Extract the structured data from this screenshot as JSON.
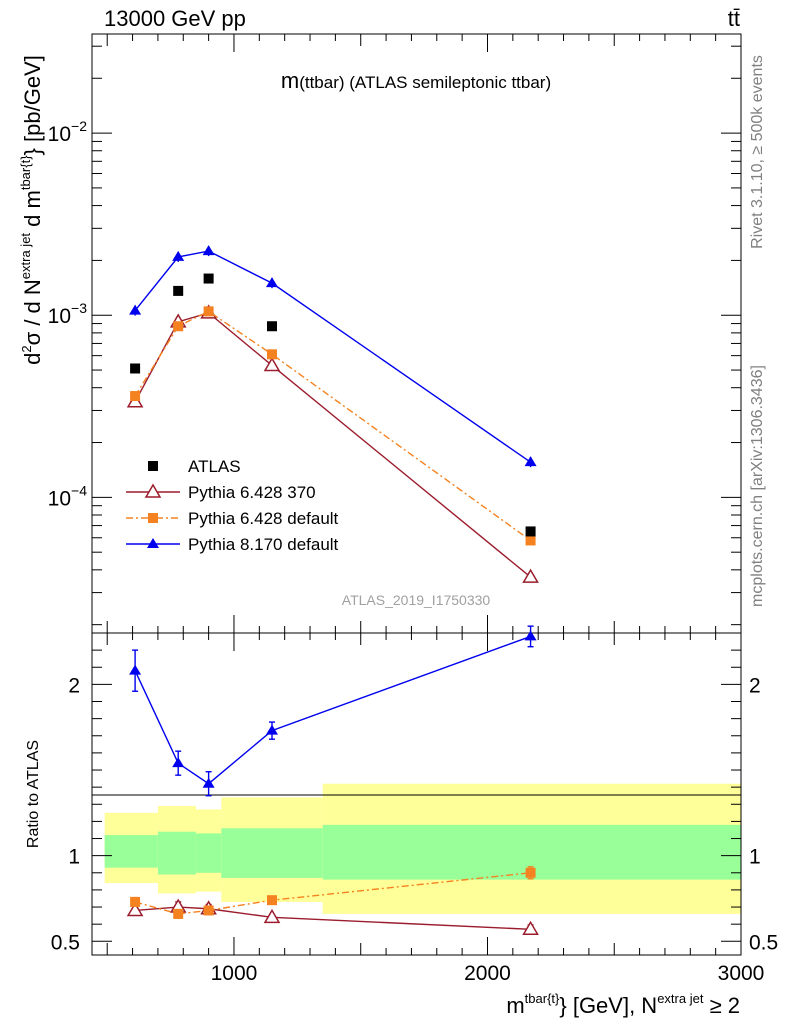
{
  "header": {
    "left": "13000 GeV pp",
    "right": "tt̄"
  },
  "side_labels": {
    "rivet": "Rivet 3.1.10, ≥ 500k events",
    "mcplots": "mcplots.cern.ch [arXiv:1306.3436]"
  },
  "chart_data": [
    {
      "id": "main",
      "type": "line",
      "yscale": "log",
      "title": "m(ttbar) (ATLAS semileptonic ttbar)",
      "title_main": "m",
      "title_paren": "(ttbar)",
      "title_rest": " (ATLAS semileptonic ttbar)",
      "watermark": "ATLAS_2019_I1750330",
      "ylabel": "d²σ / d N^{extra jet} d m^{tbar{t}} [pb/GeV]",
      "ylabel_parts": {
        "a": "d",
        "b": "2",
        "c": "σ / d N",
        "d": "extra jet",
        "e": " d m",
        "f": "tbar{t}",
        "g": "} [pb/GeV]"
      },
      "xlim": [
        440,
        3000
      ],
      "ylim": [
        1.8e-05,
        0.035
      ],
      "ytick_labels": [
        {
          "value": 0.01,
          "base": "10",
          "exp": "−2"
        },
        {
          "value": 0.001,
          "base": "10",
          "exp": "−3"
        },
        {
          "value": 0.0001,
          "base": "10",
          "exp": "−4"
        }
      ],
      "legend_position": "bottom-left",
      "series": [
        {
          "name": "ATLAS",
          "color": "#000000",
          "marker": "square",
          "line": "none",
          "x": [
            610,
            780,
            900,
            1150,
            2170
          ],
          "y": [
            0.00051,
            0.00136,
            0.00159,
            0.00087,
            6.5e-05
          ],
          "err": [
            0,
            0,
            0,
            0,
            0
          ]
        },
        {
          "name": "Pythia 6.428 370",
          "color": "#9b1c2c",
          "marker": "open-triangle",
          "line": "solid",
          "x": [
            610,
            780,
            900,
            1150,
            2170
          ],
          "y": [
            0.000335,
            0.00092,
            0.00103,
            0.00053,
            3.65e-05
          ],
          "err": [
            0,
            0,
            0,
            0,
            0
          ]
        },
        {
          "name": "Pythia 6.428 default",
          "color": "#f58220",
          "marker": "square",
          "line": "dashdot",
          "x": [
            610,
            780,
            900,
            1150,
            2170
          ],
          "y": [
            0.00036,
            0.00087,
            0.00105,
            0.00061,
            5.8e-05
          ],
          "err": [
            0,
            0,
            0,
            0,
            0
          ]
        },
        {
          "name": "Pythia 8.170 default",
          "color": "#0000ee",
          "marker": "filled-triangle",
          "line": "solid",
          "x": [
            610,
            780,
            900,
            1150,
            2170
          ],
          "y": [
            0.00106,
            0.00209,
            0.00225,
            0.0015,
            0.000156
          ],
          "err": [
            0,
            0,
            0,
            0,
            0
          ]
        }
      ]
    },
    {
      "id": "ratio",
      "type": "line",
      "yscale": "linear",
      "ylabel": "Ratio to ATLAS",
      "xlabel": "m^{tbar{t}} [GeV], N^{extra jet} ≥ 2",
      "xlabel_parts": {
        "a": "m",
        "b": "tbar{t}",
        "c": "} [GeV], N",
        "d": "extra jet",
        "e": " ≥ 2"
      },
      "xlim": [
        440,
        3000
      ],
      "ylim": [
        0.42,
        2.3
      ],
      "xticks": [
        1000,
        2000,
        3000
      ],
      "xtick_labels": [
        "1000",
        "2000",
        "3000"
      ],
      "yticks": [
        0.5,
        1,
        2
      ],
      "ytick_labels": [
        "0.5",
        "1",
        "2"
      ],
      "bands": [
        {
          "x0": 490,
          "x1": 700,
          "green_lo": 0.93,
          "green_hi": 1.12,
          "yellow_lo": 0.84,
          "yellow_hi": 1.25
        },
        {
          "x0": 700,
          "x1": 850,
          "green_lo": 0.89,
          "green_hi": 1.14,
          "yellow_lo": 0.78,
          "yellow_hi": 1.29
        },
        {
          "x0": 850,
          "x1": 950,
          "green_lo": 0.9,
          "green_hi": 1.13,
          "yellow_lo": 0.79,
          "yellow_hi": 1.27
        },
        {
          "x0": 950,
          "x1": 1350,
          "green_lo": 0.87,
          "green_hi": 1.16,
          "yellow_lo": 0.73,
          "yellow_hi": 1.34
        },
        {
          "x0": 1350,
          "x1": 3000,
          "green_lo": 0.86,
          "green_hi": 1.18,
          "yellow_lo": 0.66,
          "yellow_hi": 1.42
        }
      ],
      "series": [
        {
          "name": "Pythia 6.428 370",
          "color": "#9b1c2c",
          "marker": "open-triangle",
          "line": "solid",
          "x": [
            610,
            780,
            900,
            1150,
            2170
          ],
          "y": [
            0.68,
            0.7,
            0.69,
            0.64,
            0.57
          ],
          "err": [
            0.025,
            0.03,
            0.025,
            0.015,
            0.025
          ]
        },
        {
          "name": "Pythia 6.428 default",
          "color": "#f58220",
          "marker": "square",
          "line": "dashdot",
          "x": [
            610,
            780,
            900,
            1150,
            2170
          ],
          "y": [
            0.73,
            0.66,
            0.68,
            0.74,
            0.9
          ],
          "err": [
            0.025,
            0.025,
            0.02,
            0.015,
            0.035
          ]
        },
        {
          "name": "Pythia 8.170 default",
          "color": "#0000ee",
          "marker": "filled-triangle",
          "line": "solid",
          "x": [
            610,
            780,
            900,
            1150,
            2170
          ],
          "y": [
            2.08,
            1.54,
            1.42,
            1.73,
            2.28
          ],
          "err": [
            0.12,
            0.07,
            0.07,
            0.05,
            0.06
          ]
        }
      ]
    }
  ]
}
